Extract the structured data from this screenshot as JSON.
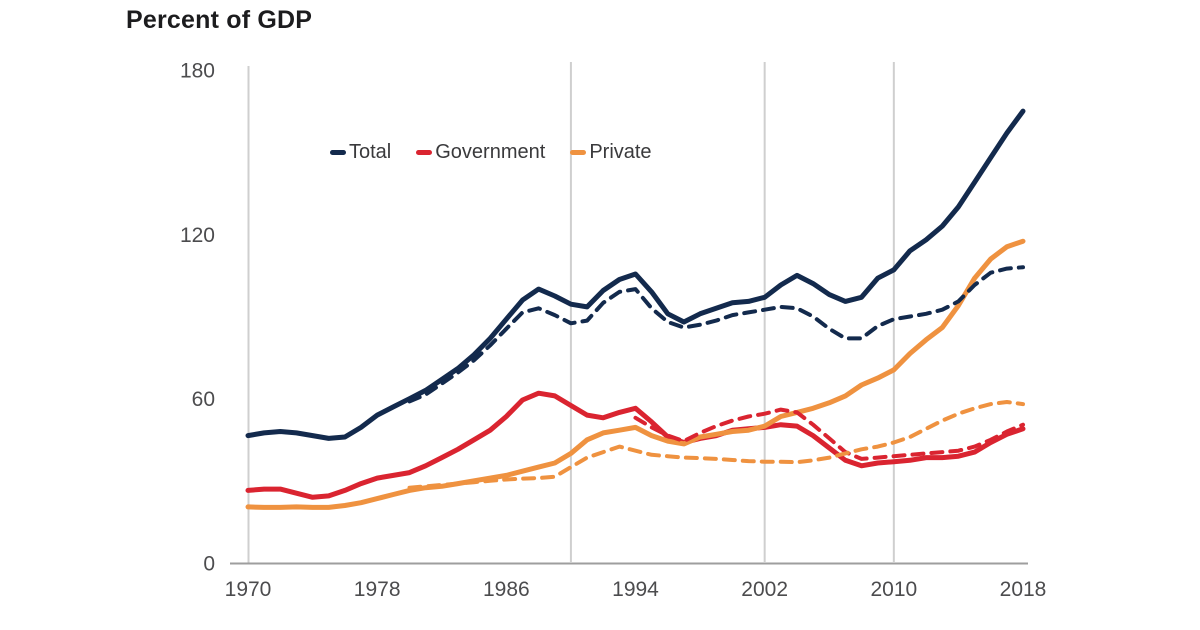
{
  "title": "Percent of GDP",
  "colors": {
    "total": "#132a4d",
    "government": "#da2430",
    "private": "#ef9240",
    "gridline": "#cfcfcf",
    "axis_line": "#9e9e9e",
    "tick_text": "#4c4c4e",
    "title_text": "#1c1c1e",
    "background": "#ffffff"
  },
  "legend": [
    {
      "label": "Total",
      "color": "#132a4d"
    },
    {
      "label": "Government",
      "color": "#da2430"
    },
    {
      "label": "Private",
      "color": "#ef9240"
    }
  ],
  "chart_data": {
    "type": "line",
    "title": "Percent of GDP",
    "xlabel": "",
    "ylabel": "Percent of GDP",
    "x_ticks": [
      "1970",
      "1978",
      "1986",
      "1994",
      "2002",
      "2010",
      "2018"
    ],
    "y_ticks": [
      "0",
      "60",
      "120",
      "180"
    ],
    "x_range": [
      1970,
      2018
    ],
    "y_range": [
      0,
      180
    ],
    "gridlines_x_years": [
      1990,
      2002,
      2010
    ],
    "grid": "vertical-only",
    "legend_position": "top-left-inside",
    "series": [
      {
        "name": "Total",
        "style": "solid",
        "color": "#132a4d",
        "points": [
          [
            1970,
            46.5
          ],
          [
            1971,
            47.5
          ],
          [
            1972,
            48
          ],
          [
            1973,
            47.5
          ],
          [
            1974,
            46.5
          ],
          [
            1975,
            45.5
          ],
          [
            1976,
            46
          ],
          [
            1977,
            49.5
          ],
          [
            1978,
            54
          ],
          [
            1979,
            57
          ],
          [
            1980,
            60
          ],
          [
            1981,
            63
          ],
          [
            1982,
            67
          ],
          [
            1983,
            71
          ],
          [
            1984,
            76
          ],
          [
            1985,
            82
          ],
          [
            1986,
            89
          ],
          [
            1987,
            96
          ],
          [
            1988,
            100
          ],
          [
            1989,
            97.5
          ],
          [
            1990,
            94.5
          ],
          [
            1991,
            93.5
          ],
          [
            1992,
            99.5
          ],
          [
            1993,
            103.5
          ],
          [
            1994,
            105.5
          ],
          [
            1995,
            99
          ],
          [
            1996,
            91
          ],
          [
            1997,
            88
          ],
          [
            1998,
            91
          ],
          [
            1999,
            93
          ],
          [
            2000,
            95
          ],
          [
            2001,
            95.5
          ],
          [
            2002,
            97
          ],
          [
            2003,
            101.5
          ],
          [
            2004,
            105
          ],
          [
            2005,
            102
          ],
          [
            2006,
            98
          ],
          [
            2007,
            95.5
          ],
          [
            2008,
            97
          ],
          [
            2009,
            104
          ],
          [
            2010,
            107
          ],
          [
            2011,
            114
          ],
          [
            2012,
            118
          ],
          [
            2013,
            123
          ],
          [
            2014,
            130
          ],
          [
            2015,
            139
          ],
          [
            2016,
            148
          ],
          [
            2017,
            157
          ],
          [
            2018,
            165
          ]
        ]
      },
      {
        "name": "Total (dashed)",
        "style": "dashed",
        "color": "#132a4d",
        "points": [
          [
            1980,
            59
          ],
          [
            1981,
            61.5
          ],
          [
            1982,
            65.5
          ],
          [
            1983,
            69.5
          ],
          [
            1984,
            74
          ],
          [
            1985,
            79.5
          ],
          [
            1986,
            85.5
          ],
          [
            1987,
            91.5
          ],
          [
            1988,
            93
          ],
          [
            1989,
            90.5
          ],
          [
            1990,
            87.5
          ],
          [
            1991,
            88.5
          ],
          [
            1992,
            95
          ],
          [
            1993,
            99
          ],
          [
            1994,
            100
          ],
          [
            1995,
            93
          ],
          [
            1996,
            88
          ],
          [
            1997,
            86
          ],
          [
            1998,
            87
          ],
          [
            1999,
            88.5
          ],
          [
            2000,
            90.5
          ],
          [
            2001,
            91.5
          ],
          [
            2002,
            92.5
          ],
          [
            2003,
            93.5
          ],
          [
            2004,
            93
          ],
          [
            2005,
            90
          ],
          [
            2006,
            85.5
          ],
          [
            2007,
            82
          ],
          [
            2008,
            82
          ],
          [
            2009,
            86.5
          ],
          [
            2010,
            89
          ],
          [
            2011,
            90
          ],
          [
            2012,
            91
          ],
          [
            2013,
            92.5
          ],
          [
            2014,
            95.5
          ],
          [
            2015,
            101.5
          ],
          [
            2016,
            106
          ],
          [
            2017,
            107.5
          ],
          [
            2018,
            108
          ]
        ]
      },
      {
        "name": "Government",
        "style": "solid",
        "color": "#da2430",
        "points": [
          [
            1970,
            26.5
          ],
          [
            1971,
            27
          ],
          [
            1972,
            27
          ],
          [
            1973,
            25.5
          ],
          [
            1974,
            24
          ],
          [
            1975,
            24.5
          ],
          [
            1976,
            26.5
          ],
          [
            1977,
            29
          ],
          [
            1978,
            31
          ],
          [
            1979,
            32
          ],
          [
            1980,
            33
          ],
          [
            1981,
            35.5
          ],
          [
            1982,
            38.5
          ],
          [
            1983,
            41.5
          ],
          [
            1984,
            45
          ],
          [
            1985,
            48.5
          ],
          [
            1986,
            53.5
          ],
          [
            1987,
            59.5
          ],
          [
            1988,
            62
          ],
          [
            1989,
            61
          ],
          [
            1990,
            57.5
          ],
          [
            1991,
            54
          ],
          [
            1992,
            53
          ],
          [
            1993,
            55
          ],
          [
            1994,
            56.5
          ],
          [
            1995,
            51.5
          ],
          [
            1996,
            46
          ],
          [
            1997,
            44
          ],
          [
            1998,
            45.5
          ],
          [
            1999,
            46.5
          ],
          [
            2000,
            48.5
          ],
          [
            2001,
            49
          ],
          [
            2002,
            49.5
          ],
          [
            2003,
            50.5
          ],
          [
            2004,
            50
          ],
          [
            2005,
            46.5
          ],
          [
            2006,
            42
          ],
          [
            2007,
            37.5
          ],
          [
            2008,
            35.5
          ],
          [
            2009,
            36.5
          ],
          [
            2010,
            37
          ],
          [
            2011,
            37.5
          ],
          [
            2012,
            38.5
          ],
          [
            2013,
            38.5
          ],
          [
            2014,
            39
          ],
          [
            2015,
            40.5
          ],
          [
            2016,
            44
          ],
          [
            2017,
            47
          ],
          [
            2018,
            49
          ]
        ]
      },
      {
        "name": "Government (dashed)",
        "style": "dashed",
        "color": "#da2430",
        "points": [
          [
            1994,
            53
          ],
          [
            1995,
            49.5
          ],
          [
            1996,
            46.5
          ],
          [
            1997,
            44.5
          ],
          [
            1998,
            47.5
          ],
          [
            1999,
            50
          ],
          [
            2000,
            52
          ],
          [
            2001,
            53.5
          ],
          [
            2002,
            54.5
          ],
          [
            2003,
            56
          ],
          [
            2004,
            55
          ],
          [
            2005,
            50.5
          ],
          [
            2006,
            45.5
          ],
          [
            2007,
            40.5
          ],
          [
            2008,
            38
          ],
          [
            2009,
            38.5
          ],
          [
            2010,
            39
          ],
          [
            2011,
            39.5
          ],
          [
            2012,
            40
          ],
          [
            2013,
            40.5
          ],
          [
            2014,
            41
          ],
          [
            2015,
            42.5
          ],
          [
            2016,
            45
          ],
          [
            2017,
            48
          ],
          [
            2018,
            50.5
          ]
        ]
      },
      {
        "name": "Private",
        "style": "solid",
        "color": "#ef9240",
        "points": [
          [
            1970,
            20.5
          ],
          [
            1971,
            20.3
          ],
          [
            1972,
            20.3
          ],
          [
            1973,
            20.5
          ],
          [
            1974,
            20.3
          ],
          [
            1975,
            20.3
          ],
          [
            1976,
            21
          ],
          [
            1977,
            22
          ],
          [
            1978,
            23.5
          ],
          [
            1979,
            25
          ],
          [
            1980,
            26.5
          ],
          [
            1981,
            27.5
          ],
          [
            1982,
            28
          ],
          [
            1983,
            29
          ],
          [
            1984,
            30
          ],
          [
            1985,
            31
          ],
          [
            1986,
            32
          ],
          [
            1987,
            33.5
          ],
          [
            1988,
            35
          ],
          [
            1989,
            36.5
          ],
          [
            1990,
            40
          ],
          [
            1991,
            45
          ],
          [
            1992,
            47.5
          ],
          [
            1993,
            48.5
          ],
          [
            1994,
            49.5
          ],
          [
            1995,
            46.5
          ],
          [
            1996,
            44.5
          ],
          [
            1997,
            43.5
          ],
          [
            1998,
            46
          ],
          [
            1999,
            47
          ],
          [
            2000,
            48
          ],
          [
            2001,
            48.5
          ],
          [
            2002,
            50
          ],
          [
            2003,
            53.5
          ],
          [
            2004,
            55
          ],
          [
            2005,
            56.5
          ],
          [
            2006,
            58.5
          ],
          [
            2007,
            61
          ],
          [
            2008,
            65
          ],
          [
            2009,
            67.5
          ],
          [
            2010,
            70.5
          ],
          [
            2011,
            76.5
          ],
          [
            2012,
            81.5
          ],
          [
            2013,
            86
          ],
          [
            2014,
            94
          ],
          [
            2015,
            104
          ],
          [
            2016,
            111
          ],
          [
            2017,
            115.5
          ],
          [
            2018,
            117.5
          ]
        ]
      },
      {
        "name": "Private (dashed)",
        "style": "dashed",
        "color": "#ef9240",
        "points": [
          [
            1980,
            27.5
          ],
          [
            1981,
            28
          ],
          [
            1982,
            28.5
          ],
          [
            1983,
            29
          ],
          [
            1984,
            29.5
          ],
          [
            1985,
            30
          ],
          [
            1986,
            30.5
          ],
          [
            1987,
            30.8
          ],
          [
            1988,
            31
          ],
          [
            1989,
            31.5
          ],
          [
            1990,
            35
          ],
          [
            1991,
            38.5
          ],
          [
            1992,
            40.5
          ],
          [
            1993,
            42.5
          ],
          [
            1994,
            41
          ],
          [
            1995,
            39.5
          ],
          [
            1996,
            39
          ],
          [
            1997,
            38.5
          ],
          [
            1998,
            38.3
          ],
          [
            1999,
            38
          ],
          [
            2000,
            37.6
          ],
          [
            2001,
            37.2
          ],
          [
            2002,
            37
          ],
          [
            2003,
            37
          ],
          [
            2004,
            36.8
          ],
          [
            2005,
            37.5
          ],
          [
            2006,
            38.5
          ],
          [
            2007,
            40
          ],
          [
            2008,
            41.5
          ],
          [
            2009,
            42.5
          ],
          [
            2010,
            44
          ],
          [
            2011,
            46
          ],
          [
            2012,
            49
          ],
          [
            2013,
            52
          ],
          [
            2014,
            54.5
          ],
          [
            2015,
            56.5
          ],
          [
            2016,
            58
          ],
          [
            2017,
            58.8
          ],
          [
            2018,
            58
          ]
        ]
      }
    ]
  }
}
